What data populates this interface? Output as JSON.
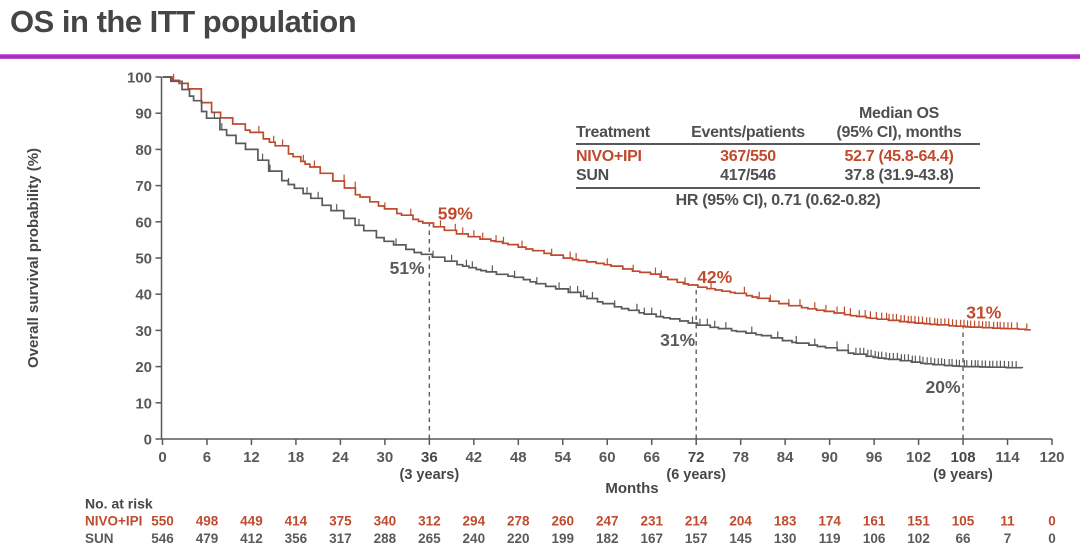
{
  "slide": {
    "title": "OS in the ITT population"
  },
  "colors": {
    "accent_rule": "#aa2fc0",
    "nivo_ipi": "#bf4b2e",
    "sun": "#595a5c",
    "axis": "#58595b",
    "text_dark": "#474747"
  },
  "summary_table": {
    "header": {
      "col1": "Treatment",
      "col2": "Events/patients",
      "col3_line1": "Median OS",
      "col3_line2": "(95% CI), months"
    },
    "rows": [
      {
        "treatment": "NIVO+IPI",
        "events": "367/550",
        "median": "52.7 (45.8-64.4)"
      },
      {
        "treatment": "SUN",
        "events": "417/546",
        "median": "37.8 (31.9-43.8)"
      }
    ],
    "footer": "HR (95% CI), 0.71 (0.62-0.82)"
  },
  "chart_data": {
    "type": "line",
    "subtype": "kaplan-meier-step",
    "title": "",
    "xlabel": "Months",
    "ylabel": "Overall survival probability (%)",
    "xlim": [
      0,
      120
    ],
    "ylim": [
      0,
      100
    ],
    "grid": false,
    "x_ticks": [
      0,
      6,
      12,
      18,
      24,
      30,
      36,
      42,
      48,
      54,
      60,
      66,
      72,
      78,
      84,
      90,
      96,
      102,
      108,
      114,
      120
    ],
    "x_ticks_bold": [
      36,
      72,
      108
    ],
    "x_tick_sublabels": [
      {
        "x": 36,
        "label": "(3 years)"
      },
      {
        "x": 72,
        "label": "(6 years)"
      },
      {
        "x": 108,
        "label": "(9 years)"
      }
    ],
    "y_ticks": [
      0,
      10,
      20,
      30,
      40,
      50,
      60,
      70,
      80,
      90,
      100
    ],
    "dashed_reference_lines_x": [
      36,
      72,
      108
    ],
    "series": [
      {
        "name": "NIVO+IPI",
        "color": "#bf4b2e",
        "points": [
          [
            0,
            100
          ],
          [
            1,
            99.3
          ],
          [
            2,
            98.5
          ],
          [
            3,
            97.3
          ],
          [
            4,
            96
          ],
          [
            5,
            93.5
          ],
          [
            6,
            91
          ],
          [
            8,
            88.5
          ],
          [
            10,
            86.5
          ],
          [
            12,
            84.5
          ],
          [
            14,
            82.5
          ],
          [
            16,
            80
          ],
          [
            18,
            77.5
          ],
          [
            20,
            75
          ],
          [
            22,
            72.5
          ],
          [
            24,
            70
          ],
          [
            26,
            67.5
          ],
          [
            28,
            65.5
          ],
          [
            30,
            63.5
          ],
          [
            32,
            62
          ],
          [
            34,
            60.5
          ],
          [
            36,
            59
          ],
          [
            39,
            57
          ],
          [
            42,
            55.5
          ],
          [
            45,
            54.5
          ],
          [
            48,
            53
          ],
          [
            51,
            51.5
          ],
          [
            54,
            50
          ],
          [
            57,
            49
          ],
          [
            60,
            48
          ],
          [
            63,
            46.5
          ],
          [
            66,
            45.5
          ],
          [
            69,
            43.5
          ],
          [
            72,
            42
          ],
          [
            75,
            41
          ],
          [
            78,
            40
          ],
          [
            81,
            38.5
          ],
          [
            84,
            37
          ],
          [
            87,
            36
          ],
          [
            90,
            35
          ],
          [
            93,
            34
          ],
          [
            96,
            33.2
          ],
          [
            100,
            32.3
          ],
          [
            104,
            31.6
          ],
          [
            108,
            31
          ],
          [
            112,
            30.6
          ],
          [
            116,
            30.3
          ],
          [
            117,
            29.9
          ]
        ],
        "censor_marks": [
          1.5,
          13,
          15,
          16.2,
          19,
          20.5,
          23,
          24.5,
          26,
          30,
          33.5,
          37.5,
          39.5,
          40.5,
          42,
          43.2,
          45,
          46,
          48.5,
          52.5,
          55,
          55.8,
          60,
          63.5,
          66.5,
          67.3,
          70.5,
          74,
          78.5,
          80.5,
          82,
          84.5,
          86,
          88,
          89.5,
          91,
          92,
          92.8,
          94,
          94.8,
          95.5,
          96.3,
          115.3,
          116.6
        ],
        "censor_dense_range": [
          97,
          114.5,
          0.5
        ]
      },
      {
        "name": "SUN",
        "color": "#595a5c",
        "points": [
          [
            0,
            100
          ],
          [
            1,
            99
          ],
          [
            2,
            97.5
          ],
          [
            3,
            96
          ],
          [
            4,
            94
          ],
          [
            5,
            91.2
          ],
          [
            6,
            88.5
          ],
          [
            8,
            85
          ],
          [
            10,
            81.5
          ],
          [
            12,
            79
          ],
          [
            14,
            74.5
          ],
          [
            16,
            71.5
          ],
          [
            18,
            69
          ],
          [
            20,
            66.5
          ],
          [
            22,
            64
          ],
          [
            24,
            61.5
          ],
          [
            26,
            59
          ],
          [
            28,
            56.5
          ],
          [
            30,
            54.5
          ],
          [
            32,
            53
          ],
          [
            34,
            51.5
          ],
          [
            36,
            50.5
          ],
          [
            39,
            48.5
          ],
          [
            42,
            47
          ],
          [
            45,
            45.5
          ],
          [
            48,
            44.5
          ],
          [
            51,
            42.5
          ],
          [
            54,
            41
          ],
          [
            57,
            39
          ],
          [
            60,
            37
          ],
          [
            63,
            35.5
          ],
          [
            66,
            34
          ],
          [
            69,
            33
          ],
          [
            72,
            31.5
          ],
          [
            75,
            30.5
          ],
          [
            78,
            29.5
          ],
          [
            81,
            28.5
          ],
          [
            84,
            27
          ],
          [
            87,
            26
          ],
          [
            90,
            25
          ],
          [
            93,
            23.5
          ],
          [
            96,
            22.5
          ],
          [
            100,
            21.5
          ],
          [
            104,
            20.5
          ],
          [
            108,
            20
          ],
          [
            112,
            19.8
          ],
          [
            116,
            19.6
          ]
        ],
        "censor_marks": [
          7,
          8,
          13.5,
          14.5,
          17,
          19.5,
          21,
          23.5,
          26.5,
          31.5,
          36.5,
          39,
          41,
          41.8,
          44.5,
          47.5,
          50.5,
          53.5,
          55,
          56,
          56.8,
          58,
          61,
          64,
          65,
          66,
          67.2,
          71.5,
          72.5,
          73.5,
          74.5,
          76,
          79.5,
          83,
          85.5,
          88,
          91,
          92.5
        ],
        "censor_dense_range": [
          93.5,
          115,
          0.5
        ]
      }
    ],
    "annotations": [
      {
        "text": "59%",
        "month": 39.5,
        "pct": 62.3,
        "color": "#bf4b2e"
      },
      {
        "text": "51%",
        "month": 33.0,
        "pct": 47.3,
        "color": "#595a5c"
      },
      {
        "text": "42%",
        "month": 74.5,
        "pct": 44.8,
        "color": "#bf4b2e"
      },
      {
        "text": "31%",
        "month": 69.5,
        "pct": 27.3,
        "color": "#595a5c"
      },
      {
        "text": "31%",
        "month": 110.8,
        "pct": 35.0,
        "color": "#bf4b2e"
      },
      {
        "text": "20%",
        "month": 105.3,
        "pct": 14.3,
        "color": "#595a5c"
      }
    ]
  },
  "at_risk": {
    "label": "No. at risk",
    "rows": [
      {
        "name": "NIVO+IPI",
        "color": "#bf4b2e",
        "values": [
          550,
          498,
          449,
          414,
          375,
          340,
          312,
          294,
          278,
          260,
          247,
          231,
          214,
          204,
          183,
          174,
          161,
          151,
          105,
          11,
          0
        ]
      },
      {
        "name": "SUN",
        "color": "#595a5c",
        "values": [
          546,
          479,
          412,
          356,
          317,
          288,
          265,
          240,
          220,
          199,
          182,
          167,
          157,
          145,
          130,
          119,
          106,
          102,
          66,
          7,
          0
        ]
      }
    ]
  }
}
